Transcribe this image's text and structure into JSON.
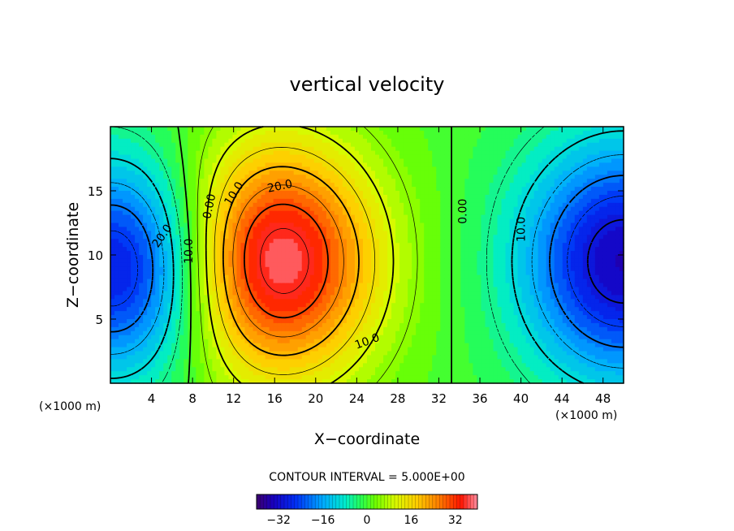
{
  "chart_data": {
    "type": "contour",
    "title": "vertical velocity",
    "xlabel": "X−coordinate",
    "ylabel": "Z−coordinate",
    "x_unit_left": "(×1000 m)",
    "x_unit_right": "(×1000 m)",
    "xlim": [
      0,
      50
    ],
    "ylim": [
      0,
      20
    ],
    "x_ticks": [
      {
        "value": 4,
        "label": "4"
      },
      {
        "value": 8,
        "label": "8"
      },
      {
        "value": 12,
        "label": "12"
      },
      {
        "value": 16,
        "label": "16"
      },
      {
        "value": 20,
        "label": "20"
      },
      {
        "value": 24,
        "label": "24"
      },
      {
        "value": 28,
        "label": "28"
      },
      {
        "value": 32,
        "label": "32"
      },
      {
        "value": 36,
        "label": "36"
      },
      {
        "value": 40,
        "label": "40"
      },
      {
        "value": 44,
        "label": "44"
      },
      {
        "value": 48,
        "label": "48"
      }
    ],
    "y_ticks": [
      {
        "value": 5,
        "label": "5"
      },
      {
        "value": 10,
        "label": "10"
      },
      {
        "value": 15,
        "label": "15"
      }
    ],
    "contour_interval_text": "CONTOUR INTERVAL = 5.000E+00",
    "contour_labels": [
      {
        "text": "0.00",
        "x": 9.6,
        "z": 13.8,
        "angle": -78
      },
      {
        "text": "10.0",
        "x": 12.0,
        "z": 14.8,
        "angle": -58
      },
      {
        "text": "20.0",
        "x": 16.5,
        "z": 15.4,
        "angle": -12
      },
      {
        "text": "10.0",
        "x": 25.0,
        "z": 3.3,
        "angle": -20
      },
      {
        "text": "0.00",
        "x": 34.3,
        "z": 13.4,
        "angle": -90
      },
      {
        "text": "10.0",
        "x": 40.0,
        "z": 12.0,
        "angle": -90
      },
      {
        "text": "20.0",
        "x": 5.0,
        "z": 11.5,
        "angle": -55
      },
      {
        "text": "10.0",
        "x": 7.6,
        "z": 10.3,
        "angle": -90
      }
    ],
    "field_model": {
      "updraft": {
        "x": 16.0,
        "z": 9.5,
        "peak": 40,
        "sx": 7.0,
        "sz": 6.5
      },
      "downdraft_left": {
        "x": 1.5,
        "z": 9.0,
        "peak": -32,
        "sx": 6.5,
        "sz": 6.0
      },
      "downdraft_right": {
        "x": 50.0,
        "z": 9.5,
        "peak": -34,
        "sx": 7.0,
        "sz": 6.5
      }
    },
    "colorbar": {
      "min": -40,
      "max": 40,
      "ticks": [
        {
          "value": -32,
          "label": "−32"
        },
        {
          "value": -16,
          "label": "−16"
        },
        {
          "value": 0,
          "label": "0"
        },
        {
          "value": 16,
          "label": "16"
        },
        {
          "value": 32,
          "label": "32"
        }
      ]
    },
    "grid": false,
    "legend": "colorbar-bottom"
  }
}
